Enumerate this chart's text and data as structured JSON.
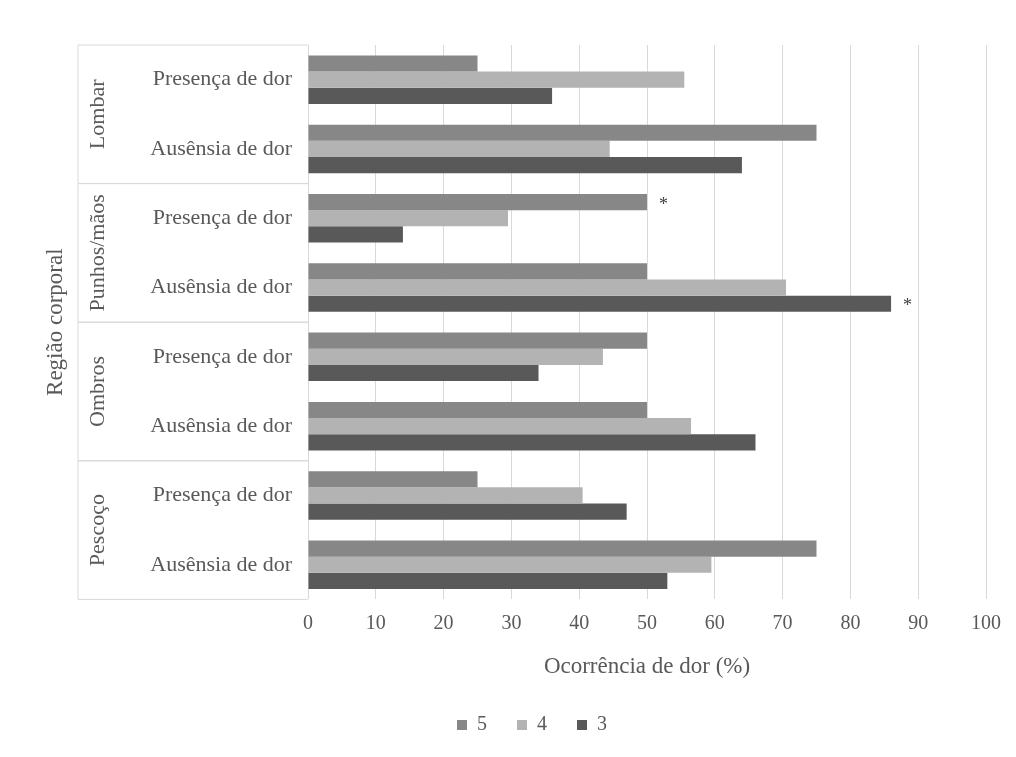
{
  "chart_data": {
    "type": "bar",
    "orientation": "horizontal",
    "xlabel": "Ocorrência de dor (%)",
    "ylabel": "Região corporal",
    "categories": [
      "Presença de dor",
      "Ausênsia de dor",
      "Presença de dor",
      "Ausênsia de dor",
      "Presença de dor",
      "Ausênsia de dor",
      "Presença de dor",
      "Ausênsia de dor"
    ],
    "annotations": [
      "Lombar",
      "Punhos/mãos",
      "Ombros",
      "Pescoço"
    ],
    "series": [
      {
        "name": "5",
        "color": "#878787",
        "values": [
          25,
          75,
          50,
          50,
          50,
          50,
          25,
          75
        ],
        "value_labels": [
          null,
          null,
          "*",
          null,
          null,
          null,
          null,
          null
        ]
      },
      {
        "name": "4",
        "color": "#b3b3b3",
        "values": [
          55.5,
          44.5,
          29.5,
          70.5,
          43.5,
          56.5,
          40.5,
          59.5
        ]
      },
      {
        "name": "3",
        "color": "#595959",
        "values": [
          36,
          64,
          14,
          86,
          34,
          66,
          47,
          53
        ],
        "value_labels": [
          null,
          null,
          null,
          "*",
          null,
          null,
          null,
          null
        ]
      }
    ],
    "xlim": [
      0,
      100
    ],
    "xticks": [
      0,
      10,
      20,
      30,
      40,
      50,
      60,
      70,
      80,
      90,
      100
    ],
    "grid": "x",
    "legend": "bottom"
  }
}
